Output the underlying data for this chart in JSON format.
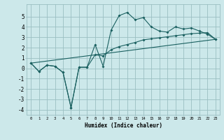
{
  "title": "",
  "xlabel": "Humidex (Indice chaleur)",
  "background_color": "#cce8ea",
  "grid_color": "#9abfc2",
  "line_color": "#1a6060",
  "xlim": [
    -0.5,
    23.5
  ],
  "ylim": [
    -4.5,
    6.2
  ],
  "xticks": [
    0,
    1,
    2,
    3,
    4,
    5,
    6,
    7,
    8,
    9,
    10,
    11,
    12,
    13,
    14,
    15,
    16,
    17,
    18,
    19,
    20,
    21,
    22,
    23
  ],
  "yticks": [
    -4,
    -3,
    -2,
    -1,
    0,
    1,
    2,
    3,
    4,
    5
  ],
  "line1_x": [
    0,
    1,
    2,
    3,
    4,
    5,
    6,
    7,
    8,
    9,
    10,
    11,
    12,
    13,
    14,
    15,
    16,
    17,
    18,
    19,
    20,
    21,
    22,
    23
  ],
  "line1_y": [
    0.5,
    -0.3,
    0.3,
    0.2,
    -0.4,
    -3.8,
    0.1,
    0.1,
    2.3,
    0.2,
    3.7,
    5.1,
    5.4,
    4.7,
    4.9,
    4.0,
    3.6,
    3.5,
    4.0,
    3.8,
    3.9,
    3.6,
    3.3,
    2.8
  ],
  "line2_x": [
    0,
    1,
    2,
    3,
    4,
    5,
    6,
    7,
    8,
    9,
    10,
    11,
    12,
    13,
    14,
    15,
    16,
    17,
    18,
    19,
    20,
    21,
    22,
    23
  ],
  "line2_y": [
    0.5,
    -0.3,
    0.3,
    0.2,
    -0.4,
    -3.8,
    0.1,
    0.1,
    1.3,
    1.2,
    1.8,
    2.1,
    2.3,
    2.5,
    2.75,
    2.85,
    2.95,
    3.05,
    3.15,
    3.25,
    3.35,
    3.4,
    3.45,
    2.8
  ],
  "line3_x": [
    0,
    23
  ],
  "line3_y": [
    0.5,
    2.8
  ]
}
